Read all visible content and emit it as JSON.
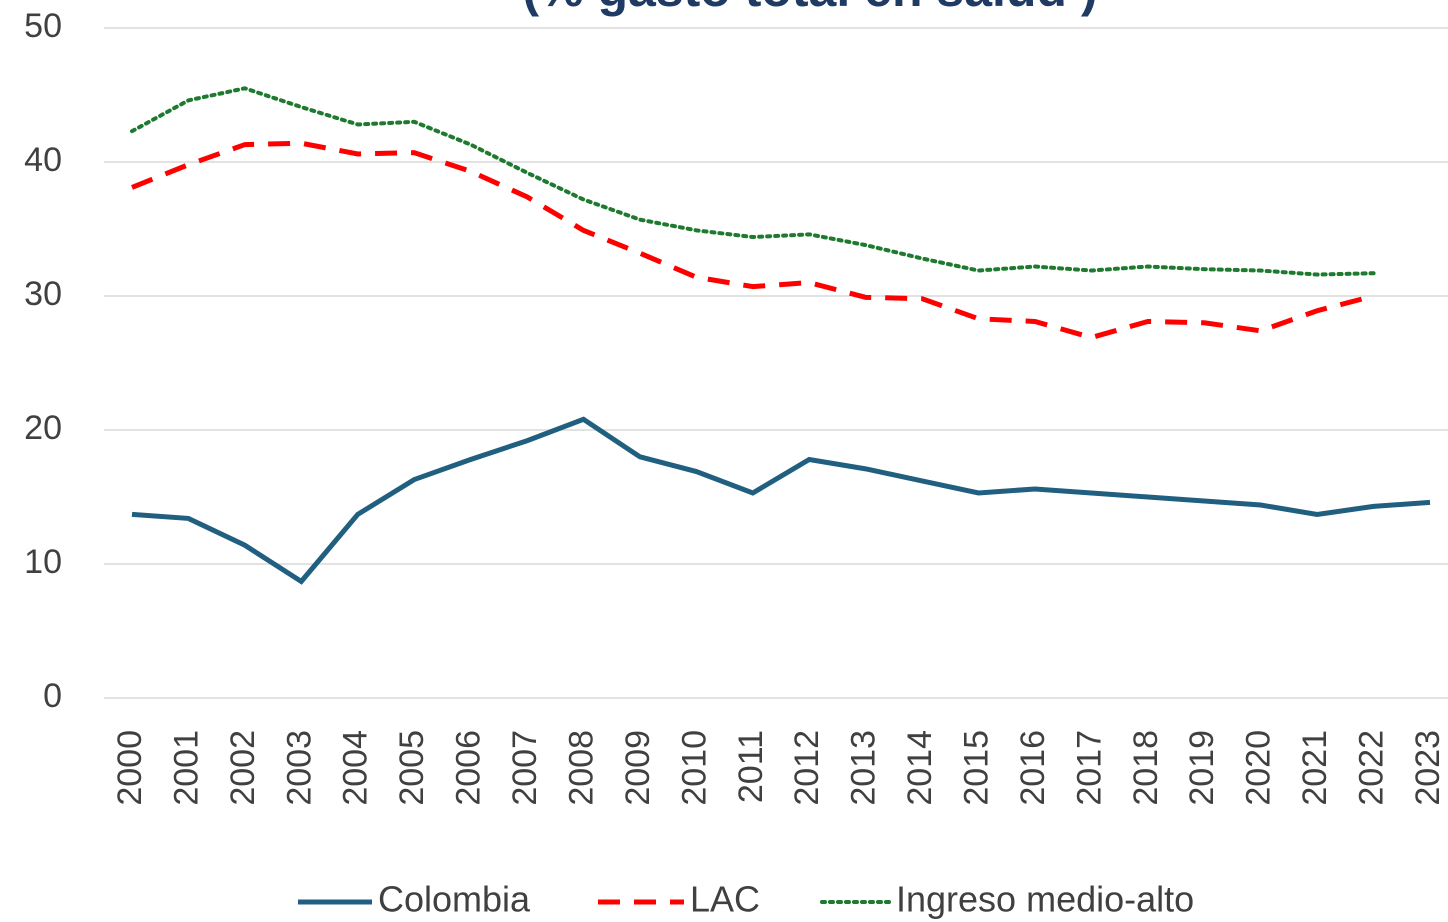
{
  "chart_data": {
    "type": "line",
    "title": "(% gasto total en salud )",
    "categories": [
      "2000",
      "2001",
      "2002",
      "2003",
      "2004",
      "2005",
      "2006",
      "2007",
      "2008",
      "2009",
      "2010",
      "2011",
      "2012",
      "2013",
      "2014",
      "2015",
      "2016",
      "2017",
      "2018",
      "2019",
      "2020",
      "2021",
      "2022",
      "2023"
    ],
    "series": [
      {
        "name": "Colombia",
        "color": "#215f80",
        "dash": "solid",
        "values": [
          13.7,
          13.4,
          11.4,
          8.7,
          13.7,
          16.3,
          17.8,
          19.2,
          20.8,
          18.0,
          16.9,
          15.3,
          17.8,
          17.1,
          16.2,
          15.3,
          15.6,
          15.3,
          15.0,
          14.7,
          14.4,
          13.7,
          14.3,
          14.6
        ]
      },
      {
        "name": "LAC",
        "color": "#ff0000",
        "dash": "dashed",
        "values": [
          38.1,
          39.8,
          41.3,
          41.4,
          40.6,
          40.7,
          39.3,
          37.4,
          34.9,
          33.2,
          31.4,
          30.7,
          31.0,
          29.9,
          29.8,
          28.3,
          28.1,
          26.9,
          28.1,
          28.0,
          27.4,
          28.9,
          30.0,
          null
        ]
      },
      {
        "name": "Ingreso medio-alto",
        "color": "#1e7a2e",
        "dash": "dotted",
        "values": [
          42.3,
          44.6,
          45.5,
          44.1,
          42.8,
          43.0,
          41.3,
          39.2,
          37.2,
          35.7,
          34.9,
          34.4,
          34.6,
          33.8,
          32.8,
          31.9,
          32.2,
          31.9,
          32.2,
          32.0,
          31.9,
          31.6,
          31.7,
          null
        ]
      }
    ],
    "ylim": [
      0,
      50
    ],
    "yticks": [
      0,
      10,
      20,
      30,
      40,
      50
    ],
    "grid": true,
    "legend": "bottom"
  }
}
